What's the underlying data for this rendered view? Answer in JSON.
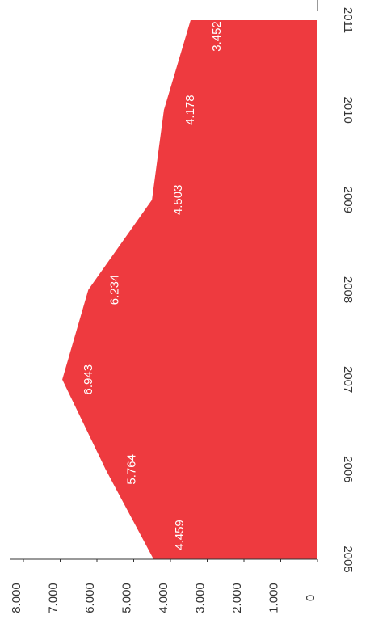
{
  "chart_data": {
    "type": "area",
    "categories": [
      "2005",
      "2006",
      "2007",
      "2008",
      "2009",
      "2010",
      "2011"
    ],
    "values": [
      4459,
      5764,
      6943,
      6234,
      4503,
      4178,
      3452
    ],
    "value_labels": [
      "4.459",
      "5.764",
      "6.943",
      "6.234",
      "4.503",
      "4.178",
      "3.452"
    ],
    "color": "#ee3a3f",
    "ylim": [
      0,
      8000
    ],
    "yticks": [
      0,
      {
        "value": 1000,
        "label": "1.000"
      },
      {
        "value": 2000,
        "label": "2.000"
      },
      {
        "value": 3000,
        "label": "3.000"
      },
      {
        "value": 4000,
        "label": "4.000"
      },
      {
        "value": 5000,
        "label": "5.000"
      },
      {
        "value": 6000,
        "label": "6.000"
      },
      {
        "value": 7000,
        "label": "7.000"
      },
      {
        "value": 8000,
        "label": "8.000"
      }
    ]
  }
}
